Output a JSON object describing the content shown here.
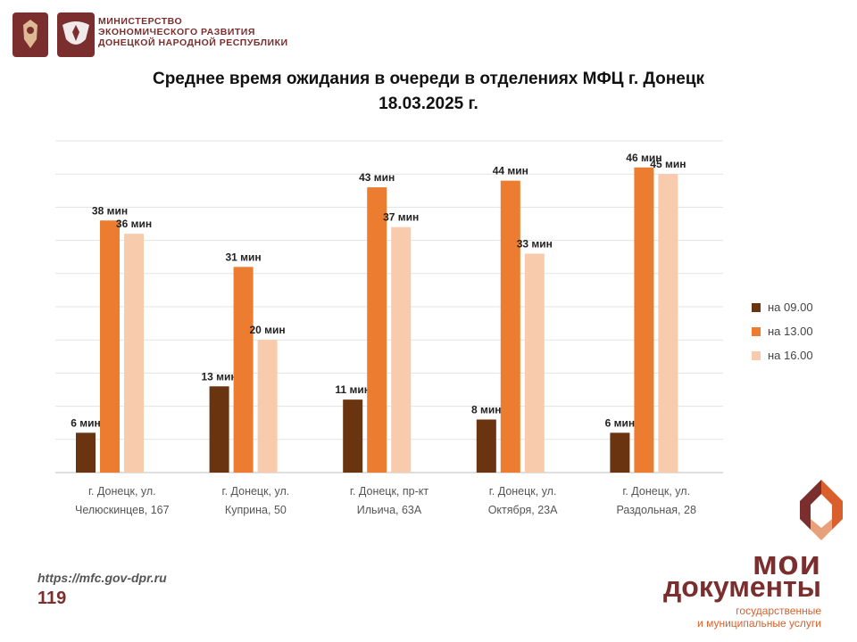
{
  "header": {
    "ministry_line1": "МИНИСТЕРСТВО",
    "ministry_line2": "ЭКОНОМИЧЕСКОГО РАЗВИТИЯ",
    "ministry_line3": "ДОНЕЦКОЙ НАРОДНОЙ РЕСПУБЛИКИ"
  },
  "chart_data": {
    "type": "bar",
    "title": "Среднее время ожидания в очереди в отделениях МФЦ г. Донецк",
    "subtitle": "18.03.2025 г.",
    "categories": [
      [
        "г. Донецк, ул.",
        "Челюскинцев, 167"
      ],
      [
        "г. Донецк, ул.",
        "Куприна, 50"
      ],
      [
        "г. Донецк, пр-кт",
        "Ильича, 63А"
      ],
      [
        "г. Донецк, ул.",
        "Октября, 23А"
      ],
      [
        "г. Донецк, ул.",
        "Раздольная, 28"
      ]
    ],
    "series": [
      {
        "name": "на 09.00",
        "color": "#6b3410",
        "values": [
          6,
          13,
          11,
          8,
          6
        ]
      },
      {
        "name": "на 13.00",
        "color": "#ec7c30",
        "values": [
          38,
          31,
          43,
          44,
          46
        ]
      },
      {
        "name": "на 16.00",
        "color": "#f8cbad",
        "values": [
          36,
          20,
          37,
          33,
          45
        ]
      }
    ],
    "value_suffix": " мин",
    "ylim": [
      0,
      50
    ],
    "grid": true,
    "legend_position": "right"
  },
  "footer": {
    "url": "https://mfc.gov-dpr.ru",
    "number": "119"
  },
  "logo": {
    "line1": "мои",
    "line2": "документы",
    "line3": "государственные",
    "line4": "и муниципальные услуги"
  }
}
